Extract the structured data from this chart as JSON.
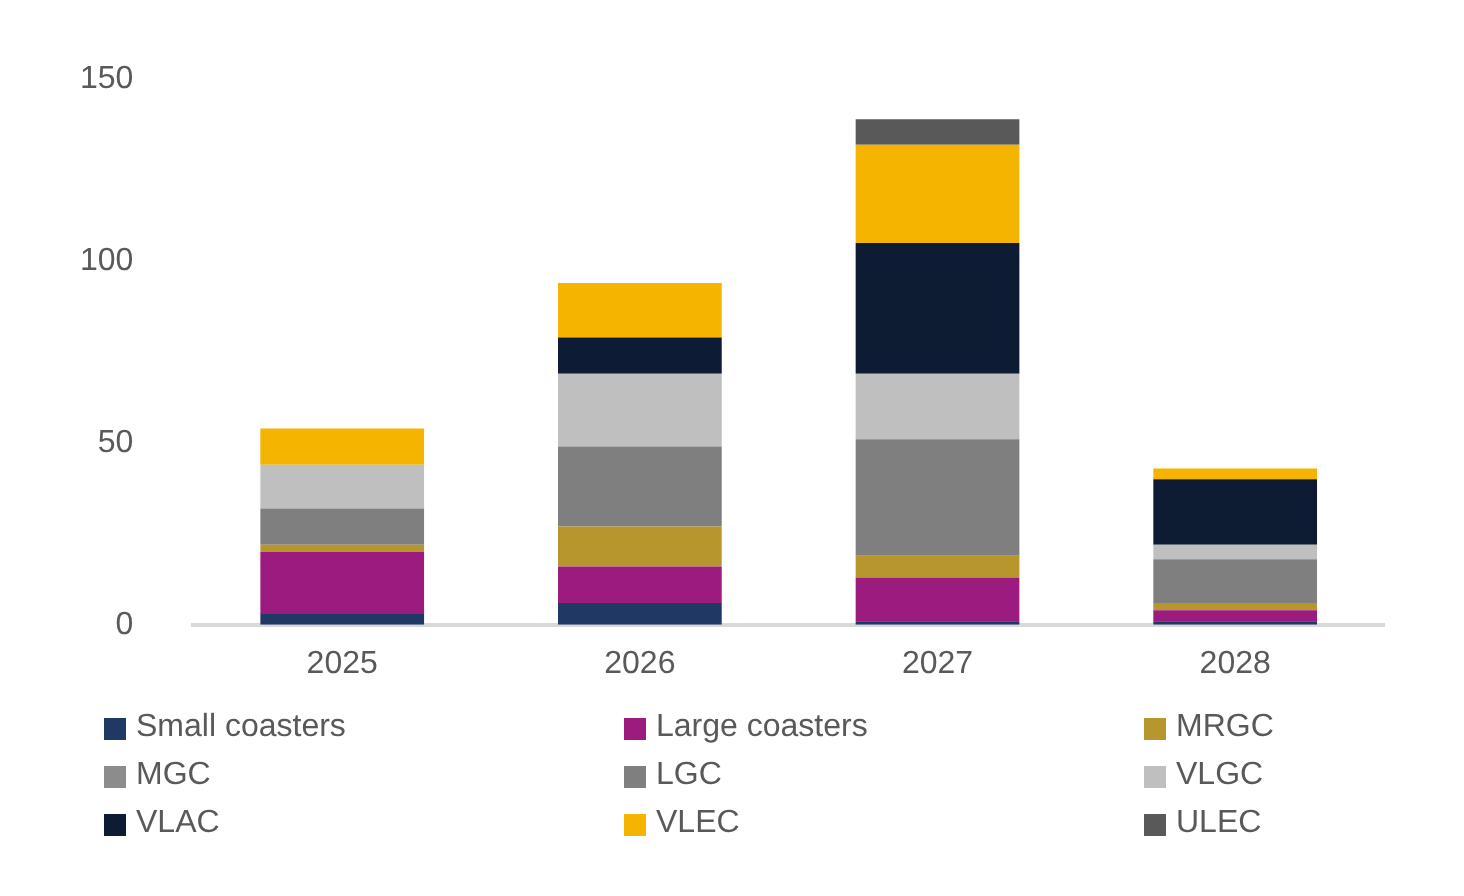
{
  "chart_data": {
    "type": "bar",
    "stacked": true,
    "categories": [
      "2025",
      "2026",
      "2027",
      "2028"
    ],
    "series": [
      {
        "name": "Small coasters",
        "color": "#1f3864",
        "values": [
          3,
          6,
          1,
          1
        ]
      },
      {
        "name": "Large coasters",
        "color": "#9b1b7e",
        "values": [
          17,
          10,
          12,
          3
        ]
      },
      {
        "name": "MRGC",
        "color": "#b8962e",
        "values": [
          2,
          11,
          6,
          2
        ]
      },
      {
        "name": "MGC",
        "color": "#8c8c8c",
        "values": [
          0,
          0,
          0,
          0
        ]
      },
      {
        "name": "LGC",
        "color": "#7f7f7f",
        "values": [
          10,
          22,
          32,
          12
        ]
      },
      {
        "name": "VLGC",
        "color": "#bfbfbf",
        "values": [
          12,
          20,
          18,
          4
        ]
      },
      {
        "name": "VLAC",
        "color": "#0d1b33",
        "values": [
          0,
          10,
          36,
          18
        ]
      },
      {
        "name": "VLEC",
        "color": "#f4b400",
        "values": [
          10,
          15,
          27,
          3
        ]
      },
      {
        "name": "ULEC",
        "color": "#595959",
        "values": [
          0,
          0,
          7,
          0
        ]
      }
    ],
    "ylim": [
      0,
      150
    ],
    "yticks": [
      0,
      50,
      100,
      150
    ],
    "grid": false,
    "legend": "bottom"
  }
}
